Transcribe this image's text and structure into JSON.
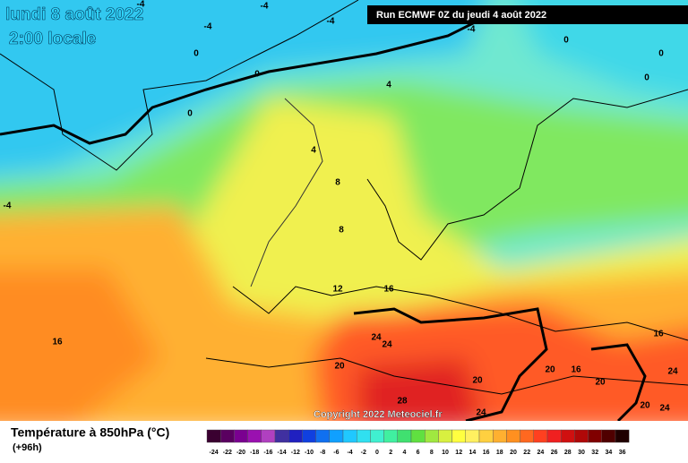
{
  "header": {
    "title": "lundi 8 août 2022",
    "subtitle": "2:00 locale",
    "run": "Run ECMWF 0Z du jeudi 4 août 2022"
  },
  "copyright": "Copyright 2022 Meteociel.fr",
  "legend": {
    "title": "Température à 850hPa (°C)",
    "lead": "(+96h)",
    "labels": [
      -24,
      -22,
      -20,
      -18,
      -16,
      -14,
      -12,
      -10,
      -8,
      -6,
      -4,
      -2,
      0,
      2,
      4,
      6,
      8,
      10,
      12,
      14,
      16,
      18,
      20,
      22,
      24,
      26,
      28,
      30,
      32,
      34,
      36
    ],
    "colors": [
      "#3a0030",
      "#5a0060",
      "#7a0090",
      "#9a10b0",
      "#b040c0",
      "#4030a0",
      "#2020c0",
      "#1040e0",
      "#1070f0",
      "#10a0ff",
      "#20c8ff",
      "#30e0f0",
      "#40f0d0",
      "#40f0a0",
      "#40e070",
      "#60e040",
      "#a0e840",
      "#d8f040",
      "#ffff40",
      "#fff060",
      "#ffd040",
      "#ffb030",
      "#ff9020",
      "#ff6820",
      "#ff4020",
      "#f02020",
      "#d01010",
      "#b00808",
      "#800000",
      "#500000",
      "#200000"
    ]
  },
  "contour_labels": [
    -4,
    -4,
    -4,
    -4,
    -4,
    -4,
    0,
    0,
    0,
    0,
    0,
    0,
    4,
    4,
    8,
    8,
    12,
    16,
    16,
    16,
    16,
    20,
    20,
    20,
    20,
    20,
    24,
    24,
    24,
    24,
    24,
    28
  ]
}
